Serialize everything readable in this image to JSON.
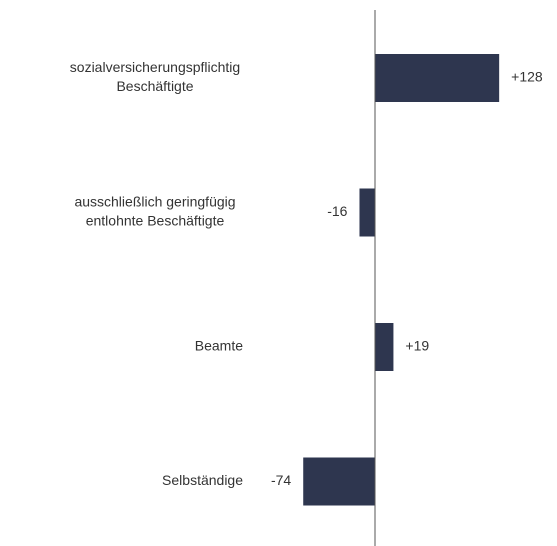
{
  "chart_data": {
    "type": "bar",
    "orientation": "horizontal",
    "categories": [
      [
        "sozialversicherungspflichtig",
        "Beschäftigte"
      ],
      [
        "ausschließlich geringfügig",
        "entlohnte Beschäftigte"
      ],
      [
        "Beamte"
      ],
      [
        "Selbständige"
      ]
    ],
    "values": [
      128,
      -16,
      19,
      -74
    ],
    "value_labels": [
      "+128",
      "-16",
      "+19",
      "-74"
    ],
    "color": "#2e364f"
  }
}
